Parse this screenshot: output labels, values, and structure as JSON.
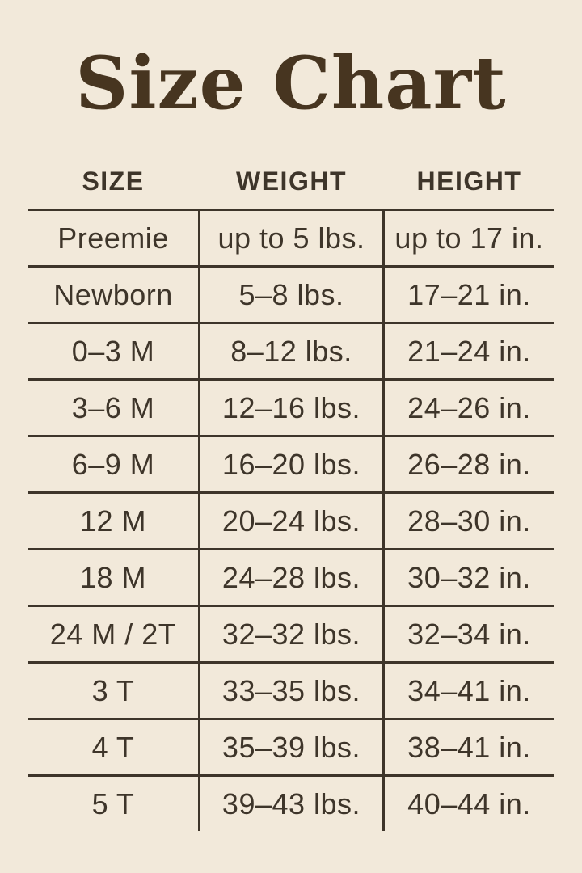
{
  "title": "Size Chart",
  "colors": {
    "background": "#f2e9da",
    "ink": "#3e352a",
    "title": "#473520"
  },
  "table": {
    "headers": [
      "SIZE",
      "WEIGHT",
      "HEIGHT"
    ],
    "rows": [
      [
        "Preemie",
        "up to 5 lbs.",
        "up to 17 in."
      ],
      [
        "Newborn",
        "5–8 lbs.",
        "17–21 in."
      ],
      [
        "0–3 M",
        "8–12 lbs.",
        "21–24 in."
      ],
      [
        "3–6 M",
        "12–16 lbs.",
        "24–26 in."
      ],
      [
        "6–9 M",
        "16–20 lbs.",
        "26–28 in."
      ],
      [
        "12 M",
        "20–24 lbs.",
        "28–30 in."
      ],
      [
        "18 M",
        "24–28 lbs.",
        "30–32 in."
      ],
      [
        "24 M / 2T",
        "32–32 lbs.",
        "32–34 in."
      ],
      [
        "3 T",
        "33–35 lbs.",
        "34–41 in."
      ],
      [
        "4 T",
        "35–39 lbs.",
        "38–41 in."
      ],
      [
        "5 T",
        "39–43 lbs.",
        "40–44 in."
      ]
    ]
  },
  "chart_data": {
    "type": "table",
    "title": "Size Chart",
    "columns": [
      "SIZE",
      "WEIGHT",
      "HEIGHT"
    ],
    "rows": [
      {
        "size": "Preemie",
        "weight": "up to 5 lbs.",
        "height": "up to 17 in."
      },
      {
        "size": "Newborn",
        "weight": "5–8 lbs.",
        "height": "17–21 in."
      },
      {
        "size": "0–3 M",
        "weight": "8–12 lbs.",
        "height": "21–24 in."
      },
      {
        "size": "3–6 M",
        "weight": "12–16 lbs.",
        "height": "24–26 in."
      },
      {
        "size": "6–9 M",
        "weight": "16–20 lbs.",
        "height": "26–28 in."
      },
      {
        "size": "12 M",
        "weight": "20–24 lbs.",
        "height": "28–30 in."
      },
      {
        "size": "18 M",
        "weight": "24–28 lbs.",
        "height": "30–32 in."
      },
      {
        "size": "24 M / 2T",
        "weight": "32–32 lbs.",
        "height": "32–34 in."
      },
      {
        "size": "3 T",
        "weight": "33–35 lbs.",
        "height": "34–41 in."
      },
      {
        "size": "4 T",
        "weight": "35–39 lbs.",
        "height": "38–41 in."
      },
      {
        "size": "5 T",
        "weight": "39–43 lbs.",
        "height": "40–44 in."
      }
    ]
  }
}
